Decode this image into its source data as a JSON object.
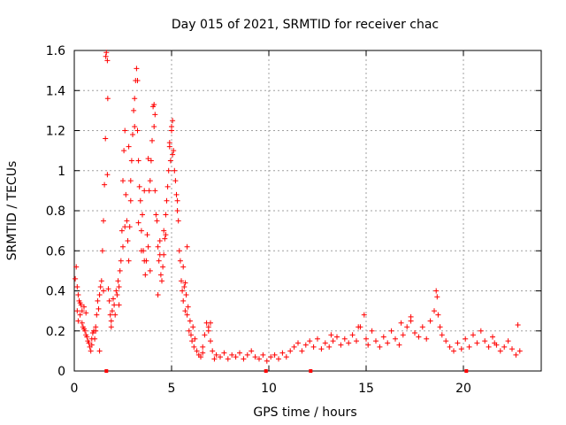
{
  "chart_data": {
    "type": "scatter",
    "title": "Day 015 of 2021, SRMTID for receiver chac",
    "xlabel": "GPS time / hours",
    "ylabel": "SRMTID / TECUs",
    "xlim": [
      0,
      24
    ],
    "ylim": [
      0,
      1.6
    ],
    "grid": true,
    "marker": "+",
    "series_color": "#ff0000",
    "x_ticks": [
      0,
      5,
      10,
      15,
      20
    ],
    "x_tick_labels": [
      "0",
      "5",
      "10",
      "15",
      "20"
    ],
    "y_ticks": [
      0,
      0.2,
      0.4,
      0.6,
      0.8,
      1.0,
      1.2,
      1.4,
      1.6
    ],
    "y_tick_labels": [
      "0",
      "0.2",
      "0.4",
      "0.6",
      "0.8",
      "1",
      "1.2",
      "1.4",
      "1.6"
    ],
    "zero_markers_x": [
      1.65,
      9.85,
      12.15,
      20.15
    ],
    "series": [
      {
        "name": "SRMTID",
        "x": [
          0.05,
          0.1,
          0.15,
          0.2,
          0.25,
          0.3,
          0.35,
          0.4,
          0.45,
          0.5,
          0.55,
          0.6,
          0.65,
          0.7,
          0.75,
          0.8,
          0.85,
          0.9,
          0.95,
          1.0,
          1.05,
          1.1,
          1.15,
          1.2,
          1.25,
          1.3,
          1.35,
          1.4,
          1.45,
          1.5,
          1.55,
          1.6,
          1.62,
          1.65,
          1.7,
          1.75,
          1.8,
          1.85,
          1.9,
          1.95,
          2.0,
          2.05,
          2.1,
          2.15,
          2.2,
          2.25,
          2.3,
          2.35,
          2.4,
          2.45,
          2.5,
          2.55,
          2.6,
          2.65,
          2.7,
          2.75,
          2.8,
          2.85,
          2.9,
          2.95,
          3.0,
          3.05,
          3.1,
          3.15,
          3.2,
          3.25,
          3.3,
          3.35,
          3.4,
          3.45,
          3.5,
          3.55,
          3.6,
          3.65,
          3.7,
          3.75,
          3.8,
          3.85,
          3.9,
          3.95,
          4.0,
          4.05,
          4.1,
          4.15,
          4.2,
          4.25,
          4.3,
          4.35,
          4.4,
          4.45,
          4.5,
          4.55,
          4.6,
          4.65,
          4.7,
          4.75,
          4.8,
          4.85,
          4.9,
          4.95,
          5.0,
          5.05,
          5.1,
          5.15,
          5.2,
          5.25,
          5.3,
          5.35,
          5.4,
          5.45,
          5.5,
          5.55,
          5.6,
          5.65,
          5.7,
          5.75,
          5.8,
          5.85,
          5.9,
          5.95,
          6.0,
          6.05,
          6.1,
          6.15,
          6.2,
          6.3,
          6.4,
          6.5,
          6.6,
          6.7,
          6.8,
          6.9,
          7.0,
          7.1,
          7.2,
          7.3,
          7.5,
          7.7,
          7.9,
          8.1,
          8.3,
          8.5,
          8.7,
          8.9,
          9.1,
          9.3,
          9.5,
          9.7,
          9.9,
          10.1,
          10.3,
          10.5,
          10.7,
          10.9,
          11.1,
          11.3,
          11.5,
          11.7,
          11.9,
          12.1,
          12.3,
          12.5,
          12.7,
          12.9,
          13.1,
          13.3,
          13.5,
          13.7,
          13.9,
          14.1,
          14.3,
          14.5,
          14.7,
          14.9,
          15.0,
          15.1,
          15.3,
          15.5,
          15.7,
          15.9,
          16.1,
          16.3,
          16.5,
          16.7,
          16.9,
          17.1,
          17.3,
          17.5,
          17.7,
          17.9,
          18.1,
          18.3,
          18.5,
          18.6,
          18.7,
          18.8,
          18.9,
          19.1,
          19.3,
          19.5,
          19.7,
          19.9,
          20.1,
          20.3,
          20.5,
          20.7,
          20.9,
          21.1,
          21.3,
          21.5,
          21.7,
          21.9,
          22.1,
          22.3,
          22.5,
          22.7,
          22.9,
          3.25,
          3.3,
          1.7,
          1.72,
          4.1,
          4.15,
          5.0,
          5.05,
          0.5,
          0.4,
          0.3,
          2.6,
          2.8,
          3.6,
          3.8,
          4.4,
          4.6,
          4.9,
          5.6,
          5.7,
          6.9,
          7.0,
          0.2,
          0.15,
          0.6,
          0.9,
          1.3,
          2.9,
          3.1,
          3.9,
          4.3,
          5.3,
          5.8,
          6.6,
          1.1,
          18.65,
          17.3,
          16.8,
          14.6,
          13.2,
          22.8,
          21.6,
          2.3,
          2.5,
          3.45,
          4.7,
          1.5,
          1.9
        ],
        "values": [
          0.46,
          0.52,
          0.3,
          0.38,
          0.35,
          0.28,
          0.33,
          0.24,
          0.22,
          0.21,
          0.2,
          0.18,
          0.17,
          0.15,
          0.14,
          0.12,
          0.1,
          0.16,
          0.19,
          0.2,
          0.16,
          0.22,
          0.28,
          0.35,
          0.31,
          0.38,
          0.42,
          0.45,
          0.6,
          0.75,
          0.93,
          1.16,
          1.57,
          1.59,
          0.98,
          0.41,
          0.35,
          0.28,
          0.22,
          0.3,
          0.36,
          0.33,
          0.28,
          0.4,
          0.38,
          0.45,
          0.42,
          0.5,
          0.55,
          0.7,
          0.95,
          1.1,
          1.2,
          0.88,
          0.75,
          0.65,
          0.55,
          0.72,
          0.95,
          1.05,
          1.18,
          1.3,
          1.36,
          1.45,
          1.51,
          1.2,
          1.05,
          0.92,
          0.85,
          0.7,
          0.78,
          0.6,
          0.55,
          0.48,
          0.55,
          0.68,
          0.62,
          0.9,
          0.95,
          1.05,
          1.15,
          1.32,
          1.22,
          0.9,
          0.78,
          0.75,
          0.62,
          0.55,
          0.58,
          0.48,
          0.45,
          0.52,
          0.58,
          0.66,
          0.78,
          0.85,
          0.92,
          1.0,
          1.12,
          1.05,
          1.2,
          1.25,
          1.1,
          1.0,
          0.95,
          0.88,
          0.8,
          0.75,
          0.6,
          0.55,
          0.45,
          0.4,
          0.35,
          0.42,
          0.3,
          0.38,
          0.28,
          0.32,
          0.2,
          0.25,
          0.18,
          0.15,
          0.22,
          0.12,
          0.16,
          0.1,
          0.08,
          0.07,
          0.12,
          0.18,
          0.24,
          0.2,
          0.15,
          0.1,
          0.06,
          0.08,
          0.07,
          0.09,
          0.06,
          0.08,
          0.07,
          0.09,
          0.06,
          0.08,
          0.1,
          0.07,
          0.06,
          0.08,
          0.05,
          0.07,
          0.08,
          0.06,
          0.09,
          0.07,
          0.1,
          0.12,
          0.14,
          0.1,
          0.13,
          0.15,
          0.12,
          0.16,
          0.11,
          0.14,
          0.12,
          0.15,
          0.17,
          0.13,
          0.16,
          0.14,
          0.18,
          0.15,
          0.22,
          0.28,
          0.16,
          0.13,
          0.2,
          0.15,
          0.12,
          0.17,
          0.14,
          0.2,
          0.16,
          0.13,
          0.18,
          0.22,
          0.25,
          0.19,
          0.17,
          0.22,
          0.16,
          0.25,
          0.3,
          0.4,
          0.28,
          0.22,
          0.18,
          0.15,
          0.12,
          0.1,
          0.14,
          0.11,
          0.16,
          0.12,
          0.18,
          0.14,
          0.2,
          0.15,
          0.12,
          0.17,
          0.13,
          0.1,
          0.12,
          0.15,
          0.11,
          0.08,
          0.1,
          1.45,
          0.74,
          1.55,
          1.36,
          1.33,
          1.28,
          1.22,
          1.08,
          0.32,
          0.3,
          0.34,
          0.72,
          1.12,
          0.9,
          1.06,
          0.65,
          0.7,
          1.14,
          0.52,
          0.44,
          0.22,
          0.24,
          0.25,
          0.42,
          0.29,
          0.13,
          0.1,
          0.85,
          1.22,
          0.5,
          0.38,
          0.85,
          0.62,
          0.09,
          0.2,
          0.37,
          0.27,
          0.24,
          0.22,
          0.18,
          0.23,
          0.14,
          0.33,
          0.62,
          0.6,
          0.68,
          0.4,
          0.25
        ]
      }
    ]
  }
}
